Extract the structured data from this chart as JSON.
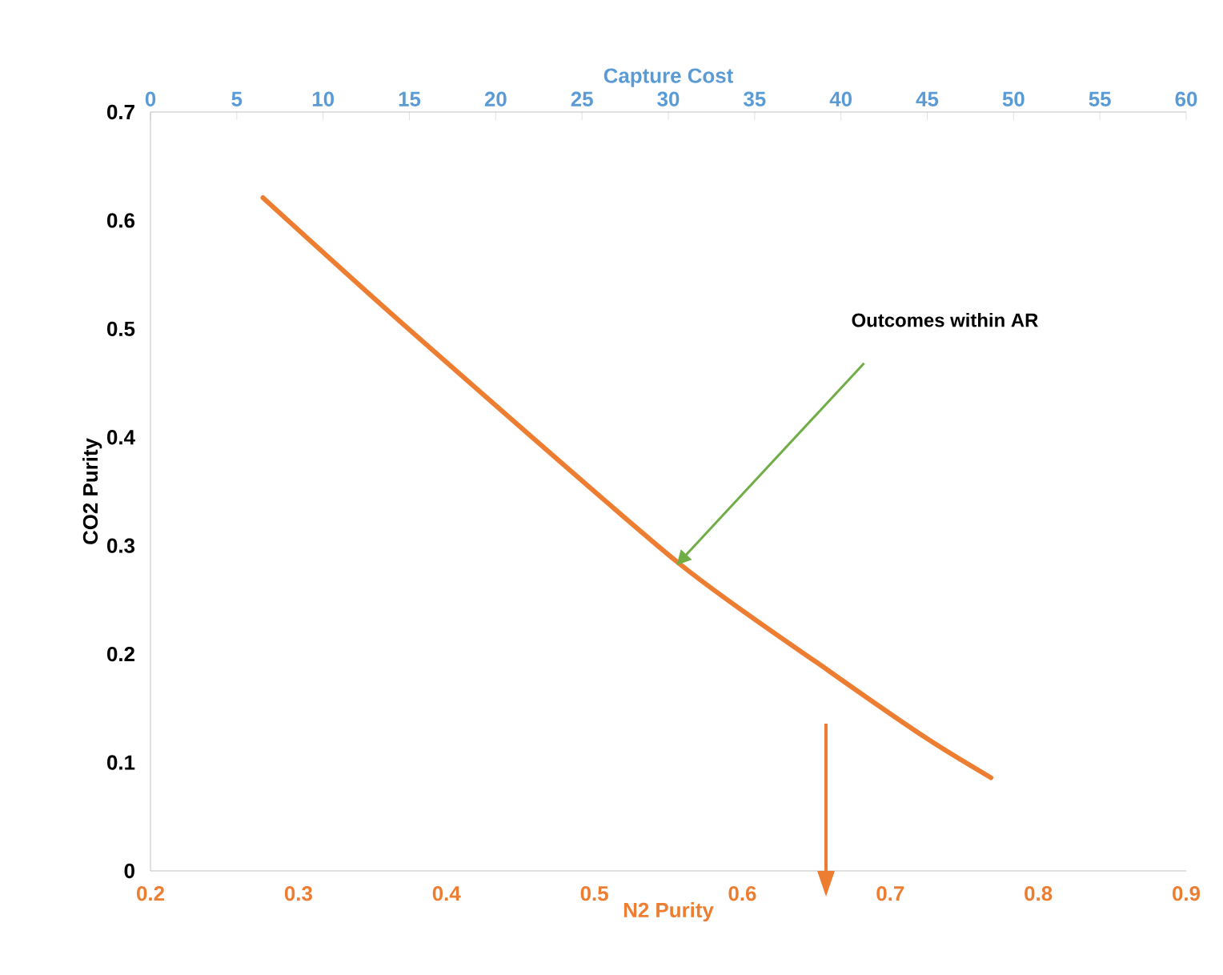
{
  "chart_data": {
    "type": "line",
    "xlabel": "N2 Purity",
    "ylabel": "CO2 Purity",
    "x2label": "Capture Cost",
    "xlim": [
      0.2,
      0.9
    ],
    "xticks": [
      0.2,
      0.3,
      0.4,
      0.5,
      0.6,
      0.7,
      0.8,
      0.9
    ],
    "ylim": [
      0,
      0.7
    ],
    "yticks": [
      0,
      0.1,
      0.2,
      0.3,
      0.4,
      0.5,
      0.6,
      0.7
    ],
    "x2lim": [
      0,
      60
    ],
    "x2ticks": [
      0,
      5,
      10,
      15,
      20,
      25,
      30,
      35,
      40,
      45,
      50,
      55,
      60
    ],
    "line_style": "solid",
    "series": [
      {
        "color": "#ed7d31",
        "x": [
          0.276,
          0.376,
          0.556,
          0.658,
          0.726,
          0.768
        ],
        "values": [
          0.621,
          0.498,
          0.285,
          0.185,
          0.121,
          0.086
        ]
      }
    ],
    "annotations": [
      "Outcomes within AR"
    ]
  }
}
